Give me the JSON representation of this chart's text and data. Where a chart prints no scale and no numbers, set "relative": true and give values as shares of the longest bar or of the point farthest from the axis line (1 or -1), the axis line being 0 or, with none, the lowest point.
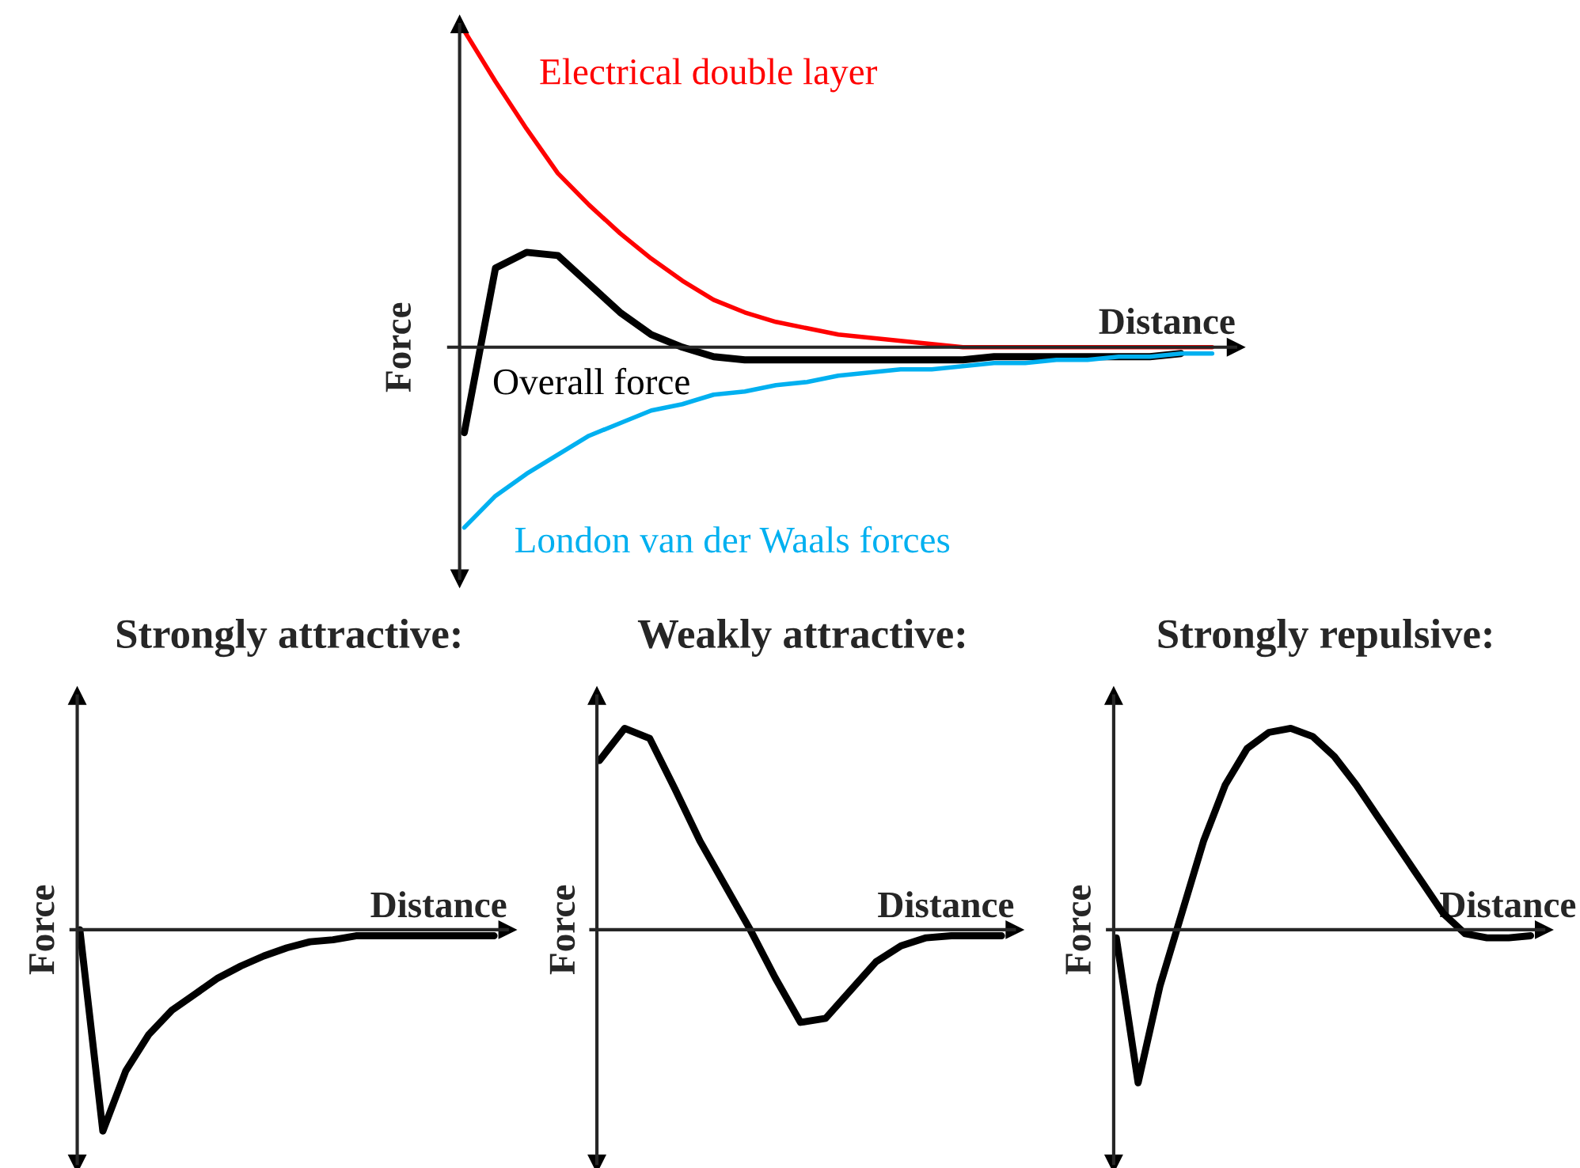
{
  "chart_data": [
    {
      "type": "line",
      "relative": true,
      "xlabel": "Distance",
      "ylabel": "Force",
      "legend": false,
      "categories": [
        null,
        null,
        null,
        null,
        null,
        null,
        null,
        null,
        null,
        null,
        null,
        null,
        null,
        null,
        null,
        null,
        null,
        null,
        null,
        null,
        null,
        null,
        null,
        null,
        null
      ],
      "series": [
        {
          "name": "Electrical double layer",
          "color": "#ff0000",
          "values": [
            1.0,
            0.84,
            0.69,
            0.55,
            0.45,
            0.36,
            0.28,
            0.21,
            0.15,
            0.11,
            0.08,
            0.06,
            0.04,
            0.03,
            0.02,
            0.01,
            0.0,
            0.0,
            0.0,
            0.0,
            0.0,
            0.0,
            0.0,
            0.0,
            0.0
          ]
        },
        {
          "name": "Overall force",
          "color": "#000000",
          "values": [
            -0.27,
            0.25,
            0.3,
            0.29,
            0.2,
            0.11,
            0.04,
            0.0,
            -0.03,
            -0.04,
            -0.04,
            -0.04,
            -0.04,
            -0.04,
            -0.04,
            -0.04,
            -0.04,
            -0.03,
            -0.03,
            -0.03,
            -0.03,
            -0.03,
            -0.03,
            -0.02,
            null
          ]
        },
        {
          "name": "London van der Waals forces",
          "color": "#00b0f0",
          "values": [
            -0.57,
            -0.47,
            -0.4,
            -0.34,
            -0.28,
            -0.24,
            -0.2,
            -0.18,
            -0.15,
            -0.14,
            -0.12,
            -0.11,
            -0.09,
            -0.08,
            -0.07,
            -0.07,
            -0.06,
            -0.05,
            -0.05,
            -0.04,
            -0.04,
            -0.03,
            -0.03,
            -0.02,
            -0.02
          ]
        }
      ]
    },
    {
      "type": "line",
      "relative": true,
      "title": "Strongly attractive:",
      "xlabel": "Distance",
      "ylabel": "Force",
      "categories": [
        null,
        null,
        null,
        null,
        null,
        null,
        null,
        null,
        null,
        null,
        null,
        null,
        null,
        null,
        null,
        null,
        null,
        null,
        null
      ],
      "series": [
        {
          "color": "#000000",
          "values": [
            0.0,
            -1.0,
            -0.7,
            -0.52,
            -0.4,
            -0.32,
            -0.24,
            -0.18,
            -0.13,
            -0.09,
            -0.06,
            -0.05,
            -0.03,
            -0.03,
            -0.03,
            -0.03,
            -0.03,
            -0.03,
            -0.03
          ]
        }
      ]
    },
    {
      "type": "line",
      "relative": true,
      "title": "Weakly attractive:",
      "xlabel": "Distance",
      "ylabel": "Force",
      "categories": [
        null,
        null,
        null,
        null,
        null,
        null,
        null,
        null,
        null,
        null,
        null,
        null,
        null,
        null,
        null,
        null,
        null
      ],
      "series": [
        {
          "color": "#000000",
          "values": [
            0.84,
            1.0,
            0.95,
            0.7,
            0.44,
            0.22,
            0.0,
            -0.24,
            -0.46,
            -0.44,
            -0.3,
            -0.16,
            -0.08,
            -0.04,
            -0.03,
            -0.03,
            -0.03
          ]
        }
      ]
    },
    {
      "type": "line",
      "relative": true,
      "title": "Strongly repulsive:",
      "xlabel": "Distance",
      "ylabel": "Force",
      "categories": [
        null,
        null,
        null,
        null,
        null,
        null,
        null,
        null,
        null,
        null,
        null,
        null,
        null,
        null,
        null,
        null,
        null,
        null,
        null,
        null
      ],
      "series": [
        {
          "color": "#000000",
          "values": [
            -0.04,
            -0.76,
            -0.28,
            0.08,
            0.44,
            0.72,
            0.9,
            0.98,
            1.0,
            0.96,
            0.86,
            0.72,
            0.56,
            0.4,
            0.24,
            0.08,
            -0.02,
            -0.04,
            -0.04,
            -0.03
          ]
        }
      ]
    }
  ]
}
